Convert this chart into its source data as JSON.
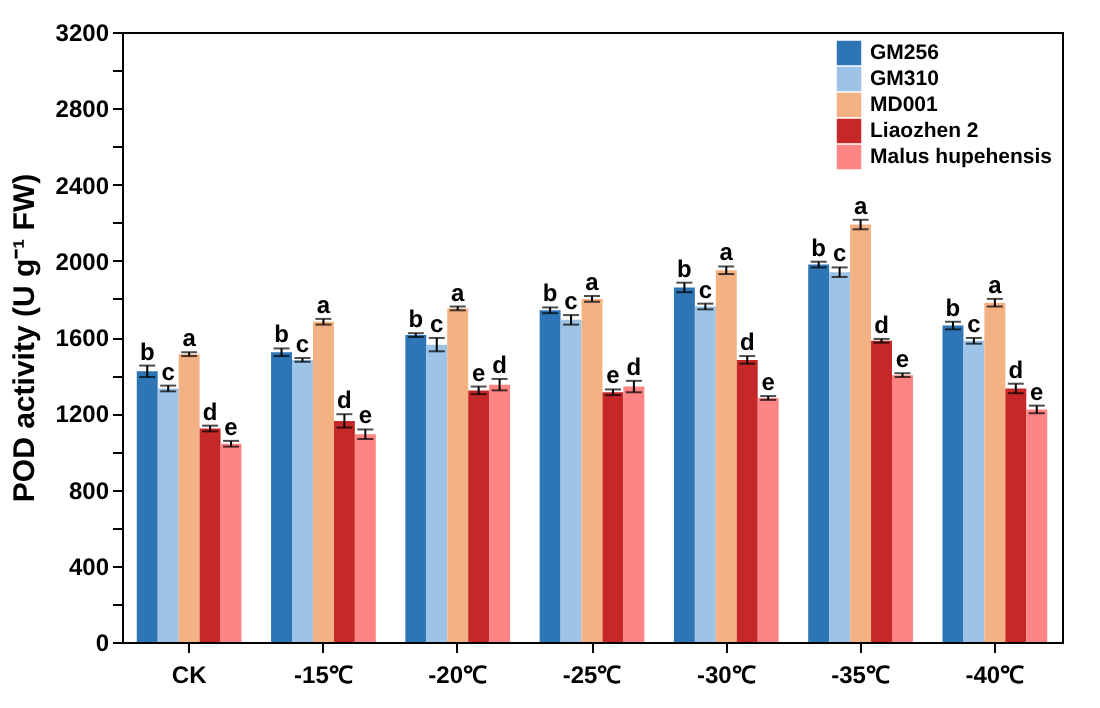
{
  "chart_data": {
    "type": "bar",
    "ylabel": "POD activity (U g⁻¹ FW)",
    "categories": [
      "CK",
      "-15℃",
      "-20℃",
      "-25℃",
      "-30℃",
      "-35℃",
      "-40℃"
    ],
    "series": [
      {
        "name": "GM256",
        "color": "#2e75b6",
        "values": [
          1420,
          1520,
          1610,
          1740,
          1860,
          1980,
          1660
        ],
        "errors": [
          30,
          20,
          10,
          15,
          25,
          15,
          20
        ],
        "value_labels": [
          "b",
          "b",
          "b",
          "b",
          "b",
          "b",
          "b"
        ]
      },
      {
        "name": "GM310",
        "color": "#9dc3e6",
        "values": [
          1330,
          1480,
          1560,
          1690,
          1760,
          1940,
          1580
        ],
        "errors": [
          15,
          10,
          35,
          25,
          15,
          25,
          15
        ],
        "value_labels": [
          "c",
          "c",
          "c",
          "c",
          "c",
          "c",
          "c"
        ]
      },
      {
        "name": "MD001",
        "color": "#f4b183",
        "values": [
          1510,
          1680,
          1750,
          1800,
          1950,
          2190,
          1780
        ],
        "errors": [
          10,
          15,
          10,
          15,
          20,
          25,
          20
        ],
        "value_labels": [
          "a",
          "a",
          "a",
          "a",
          "a",
          "a",
          "a"
        ]
      },
      {
        "name": "Liaozhen 2",
        "color": "#c62828",
        "values": [
          1120,
          1160,
          1320,
          1310,
          1480,
          1580,
          1330
        ],
        "errors": [
          15,
          35,
          20,
          15,
          20,
          10,
          25
        ],
        "value_labels": [
          "d",
          "d",
          "e",
          "e",
          "d",
          "d",
          "d"
        ]
      },
      {
        "name": "Malus hupehensis",
        "color": "#ff8585",
        "values": [
          1040,
          1090,
          1350,
          1340,
          1280,
          1400,
          1220
        ],
        "errors": [
          15,
          25,
          30,
          30,
          10,
          10,
          20
        ],
        "value_labels": [
          "e",
          "e",
          "d",
          "d",
          "e",
          "e",
          "e"
        ]
      }
    ],
    "ylim": [
      0,
      3200
    ],
    "yticks": [
      0,
      {
        "value": 200,
        "label": null
      },
      400,
      {
        "value": 600,
        "label": null
      },
      800,
      {
        "value": 1000,
        "label": null
      },
      1200,
      {
        "value": 1400,
        "label": null
      },
      1600,
      {
        "value": 1800,
        "label": null
      },
      2000,
      {
        "value": 2200,
        "label": null
      },
      2400,
      {
        "value": 2600,
        "label": null
      },
      2800,
      {
        "value": 3000,
        "label": null
      },
      3200
    ],
    "grid": false,
    "legend": "top right"
  }
}
